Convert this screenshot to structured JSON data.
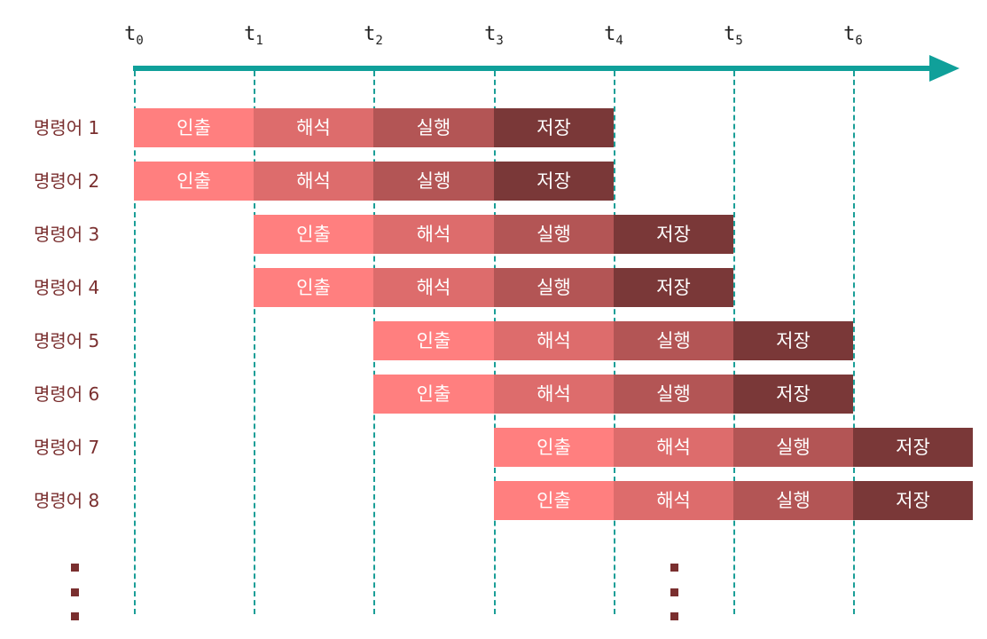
{
  "time_ticks": [
    {
      "base": "t",
      "sub": "0"
    },
    {
      "base": "t",
      "sub": "1"
    },
    {
      "base": "t",
      "sub": "2"
    },
    {
      "base": "t",
      "sub": "3"
    },
    {
      "base": "t",
      "sub": "4"
    },
    {
      "base": "t",
      "sub": "5"
    },
    {
      "base": "t",
      "sub": "6"
    }
  ],
  "stage_names": [
    "인출",
    "해석",
    "실행",
    "저장"
  ],
  "stage_colors": [
    "#ff7f7f",
    "#dd6c6c",
    "#b35555",
    "#7a3838"
  ],
  "label_color": "#7a2f2f",
  "axis_color": "#10a09a",
  "instructions": [
    {
      "label": "명령어 1",
      "start": 0
    },
    {
      "label": "명령어 2",
      "start": 0
    },
    {
      "label": "명령어 3",
      "start": 1
    },
    {
      "label": "명령어 4",
      "start": 1
    },
    {
      "label": "명령어 5",
      "start": 2
    },
    {
      "label": "명령어 6",
      "start": 2
    },
    {
      "label": "명령어 7",
      "start": 3
    },
    {
      "label": "명령어 8",
      "start": 3
    }
  ],
  "continuation": {
    "column_dots": 3,
    "interval_index": 4
  }
}
